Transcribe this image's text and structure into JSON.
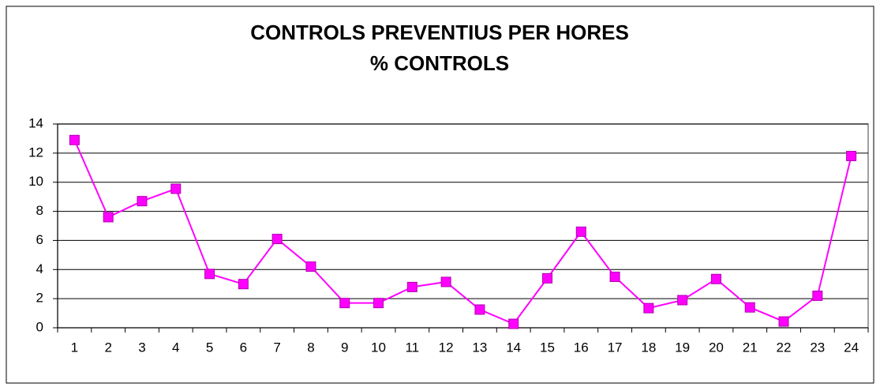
{
  "chart_data": {
    "type": "line",
    "title": "CONTROLS PREVENTIUS PER HORES",
    "subtitle": "% CONTROLS",
    "categories": [
      "1",
      "2",
      "3",
      "4",
      "5",
      "6",
      "7",
      "8",
      "9",
      "10",
      "11",
      "12",
      "13",
      "14",
      "15",
      "16",
      "17",
      "18",
      "19",
      "20",
      "21",
      "22",
      "23",
      "24"
    ],
    "series": [
      {
        "name": null,
        "color": "#ff00ff",
        "values": [
          12.9,
          7.6,
          8.7,
          9.55,
          3.7,
          3.0,
          6.1,
          4.2,
          1.7,
          1.7,
          2.8,
          3.15,
          1.25,
          0.27,
          3.4,
          6.6,
          3.5,
          1.35,
          1.9,
          3.35,
          1.4,
          0.43,
          2.2,
          11.8
        ]
      }
    ],
    "ylim": [
      0,
      14
    ],
    "yticks": [
      0,
      2,
      4,
      6,
      8,
      10,
      12,
      14
    ],
    "grid": true
  }
}
